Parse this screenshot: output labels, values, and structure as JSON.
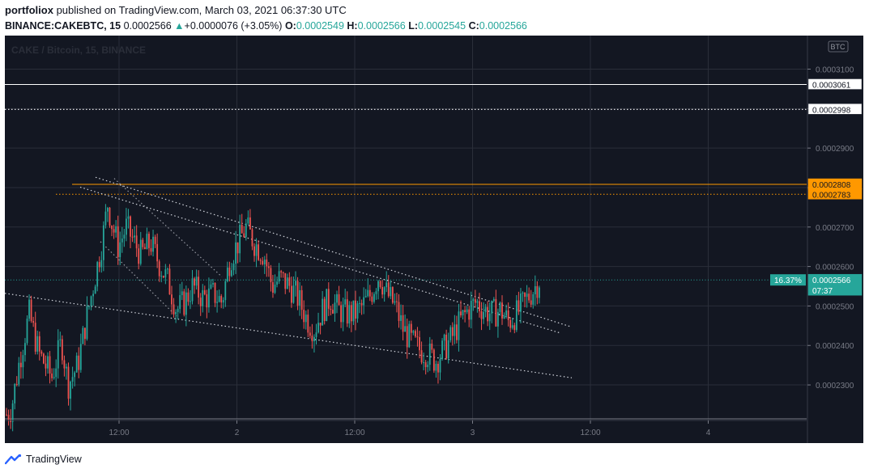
{
  "header": {
    "author": "portfoliox",
    "published_text": "published on TradingView.com, March 03, 2021 06:37:30 UTC",
    "symbol": "BINANCE:CAKEBTC, 15",
    "price": "0.0002566",
    "change_arrow": "▲",
    "change": "+0.0000076 (+3.05%)",
    "o_label": "O:",
    "o_value": "0.0002549",
    "h_label": "H:",
    "h_value": "0.0002566",
    "l_label": "L:",
    "l_value": "0.0002545",
    "c_label": "C:",
    "c_value": "0.0002566"
  },
  "footer": {
    "brand": "TradingView"
  },
  "chart_data": {
    "type": "candlestick",
    "watermark": "CAKE / Bitcoin, 15, BINANCE",
    "currency_badge": "BTC",
    "x_ticks": [
      "12:00",
      "2",
      "12:00",
      "3",
      "12:00",
      "4"
    ],
    "y_ticks": [
      "0.0003100",
      "0.0003000",
      "0.0002900",
      "0.0002800",
      "0.0002700",
      "0.0002600",
      "0.0002500",
      "0.0002400",
      "0.0002300"
    ],
    "ylim": [
      0.000221,
      0.0003185
    ],
    "price_labels": [
      {
        "value": 0.0003061,
        "label": "0.0003061",
        "style": "white-solid"
      },
      {
        "value": 0.0002998,
        "label": "0.0002998",
        "style": "white-dotted"
      },
      {
        "value": 0.0002808,
        "label": "0.0002808",
        "style": "orange-solid"
      },
      {
        "value": 0.0002783,
        "label": "0.0002783",
        "style": "orange-dotted"
      },
      {
        "value": 0.0002566,
        "label": "0.0002566",
        "style": "current"
      }
    ],
    "current": {
      "value": 0.0002566,
      "label": "0.0002566",
      "percent": "16.37%",
      "countdown": "07:37"
    },
    "bottom_line": 0.000221,
    "path": [
      [
        0,
        0.000222
      ],
      [
        8,
        0.000224
      ],
      [
        18,
        0.000236
      ],
      [
        30,
        0.000248
      ],
      [
        42,
        0.000238
      ],
      [
        58,
        0.000232
      ],
      [
        70,
        0.000241
      ],
      [
        78,
        0.00023
      ],
      [
        90,
        0.000235
      ],
      [
        100,
        0.000246
      ],
      [
        110,
        0.000256
      ],
      [
        120,
        0.000266
      ],
      [
        127,
        0.000276
      ],
      [
        132,
        0.000271
      ],
      [
        140,
        0.000265
      ],
      [
        150,
        0.00027
      ],
      [
        160,
        0.000266
      ],
      [
        168,
        0.000263
      ],
      [
        180,
        0.000266
      ],
      [
        192,
        0.00026
      ],
      [
        202,
        0.000256
      ],
      [
        212,
        0.000249
      ],
      [
        222,
        0.000251
      ],
      [
        232,
        0.000255
      ],
      [
        245,
        0.000252
      ],
      [
        258,
        0.000253
      ],
      [
        268,
        0.000251
      ],
      [
        278,
        0.000262
      ],
      [
        288,
        0.000266
      ],
      [
        298,
        0.00027
      ],
      [
        308,
        0.000266
      ],
      [
        320,
        0.000263
      ],
      [
        330,
        0.000255
      ],
      [
        340,
        0.000257
      ],
      [
        352,
        0.000255
      ],
      [
        362,
        0.000252
      ],
      [
        372,
        0.000247
      ],
      [
        382,
        0.000244
      ],
      [
        392,
        0.000249
      ],
      [
        402,
        0.000252
      ],
      [
        412,
        0.000249
      ],
      [
        422,
        0.000248
      ],
      [
        432,
        0.000248
      ],
      [
        442,
        0.00025
      ],
      [
        452,
        0.000253
      ],
      [
        462,
        0.000258
      ],
      [
        472,
        0.000253
      ],
      [
        482,
        0.00025
      ],
      [
        492,
        0.000244
      ],
      [
        502,
        0.000241
      ],
      [
        512,
        0.000239
      ],
      [
        522,
        0.000238
      ],
      [
        532,
        0.000236
      ],
      [
        542,
        0.000239
      ],
      [
        552,
        0.000242
      ],
      [
        562,
        0.000246
      ],
      [
        572,
        0.000249
      ],
      [
        582,
        0.000251
      ],
      [
        592,
        0.000249
      ],
      [
        602,
        0.000248
      ],
      [
        612,
        0.000249
      ],
      [
        622,
        0.000246
      ],
      [
        632,
        0.000248
      ],
      [
        642,
        0.000251
      ],
      [
        652,
        0.000254
      ],
      [
        660,
        0.0002566
      ]
    ],
    "trendlines": [
      {
        "from": [
          112,
          0.0002826
        ],
        "to": [
          698,
          0.0002448
        ],
        "style": "dotted"
      },
      {
        "from": [
          93,
          0.0002801
        ],
        "to": [
          685,
          0.0002432
        ],
        "style": "dotted"
      },
      {
        "from": [
          0,
          0.0002532
        ],
        "to": [
          700,
          0.0002318
        ],
        "style": "dotted"
      },
      {
        "from": [
          135,
          0.0002823
        ],
        "to": [
          268,
          0.0002574
        ],
        "style": "dotted-dark"
      },
      {
        "from": [
          118,
          0.0002663
        ],
        "to": [
          212,
          0.0002474
        ],
        "style": "dotted-dark"
      }
    ],
    "hlines": [
      {
        "value": 0.0002808,
        "from": 83,
        "style": "orange-solid"
      },
      {
        "value": 0.0002783,
        "from": 63,
        "style": "orange-dotted"
      }
    ]
  }
}
